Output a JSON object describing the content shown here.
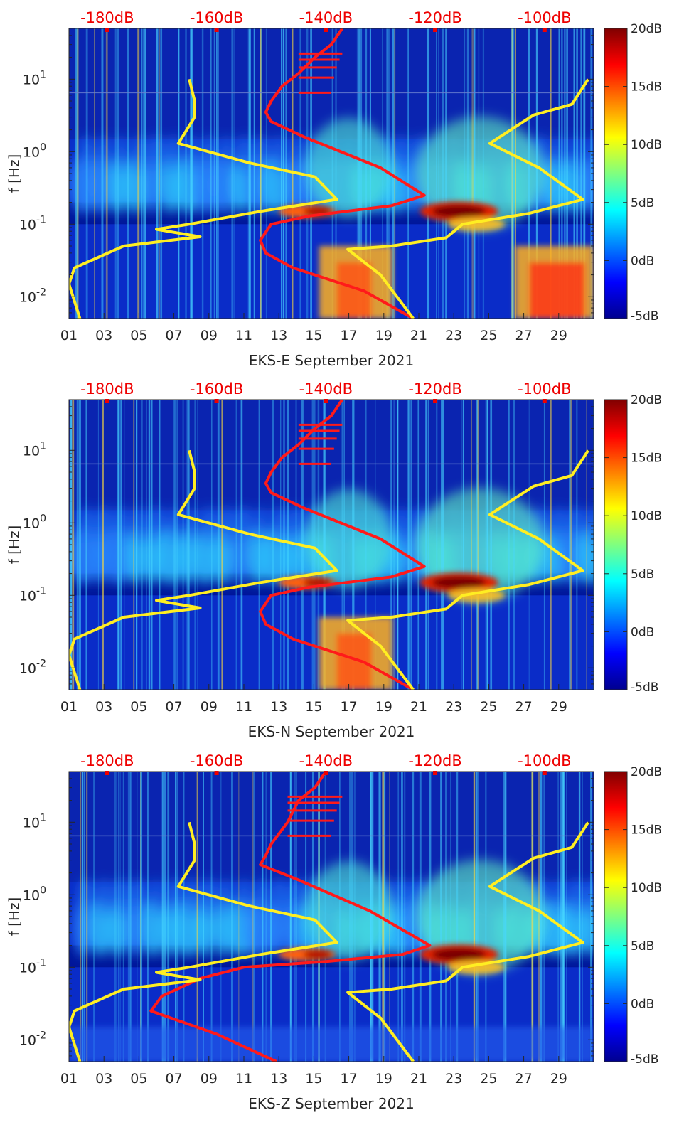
{
  "chart_data": [
    {
      "type": "heatmap",
      "xlabel": "EKS-E September 2021",
      "ylabel": "f [Hz]",
      "x_tick_labels": [
        "01",
        "03",
        "05",
        "07",
        "09",
        "11",
        "13",
        "15",
        "17",
        "19",
        "21",
        "23",
        "25",
        "27",
        "29"
      ],
      "x_range_days": [
        1,
        31
      ],
      "y_scale": "log",
      "y_range_hz": [
        0.005,
        50
      ],
      "y_tick_labels": [
        "10^-2",
        "10^-1",
        "10^0",
        "10^1"
      ],
      "top_axis_labels": [
        "-180dB",
        "-160dB",
        "-140dB",
        "-120dB",
        "-100dB"
      ],
      "top_axis_db_range": [
        -187,
        -91
      ],
      "colorbar": {
        "labels": [
          "-5dB",
          "0dB",
          "5dB",
          "10dB",
          "15dB",
          "20dB"
        ],
        "range_db": [
          -5,
          20
        ],
        "colormap": "jet"
      },
      "series": [
        {
          "color": "#ff1a1a",
          "db_vs_freq": [
            [
              -137,
              50
            ],
            [
              -139,
              30
            ],
            [
              -142,
              20
            ],
            [
              -145,
              12
            ],
            [
              -148,
              8
            ],
            [
              -150,
              5
            ],
            [
              -151,
              3.5
            ],
            [
              -150,
              2.6
            ],
            [
              -144,
              1.6
            ],
            [
              -130,
              0.6
            ],
            [
              -122,
              0.25
            ],
            [
              -128,
              0.18
            ],
            [
              -143,
              0.13
            ],
            [
              -150,
              0.1
            ],
            [
              -152,
              0.06
            ],
            [
              -151,
              0.04
            ],
            [
              -146,
              0.025
            ],
            [
              -133,
              0.012
            ],
            [
              -124,
              0.005
            ]
          ]
        },
        {
          "color": "#ffee22",
          "db_vs_freq": [
            [
              -165,
              10
            ],
            [
              -164,
              5
            ],
            [
              -164,
              3
            ],
            [
              -167,
              1.3
            ],
            [
              -154,
              0.7
            ],
            [
              -142,
              0.45
            ],
            [
              -138,
              0.22
            ],
            [
              -152,
              0.15
            ],
            [
              -165,
              0.1
            ],
            [
              -171,
              0.085
            ],
            [
              -163,
              0.067
            ],
            [
              -177,
              0.05
            ],
            [
              -186,
              0.025
            ],
            [
              -187,
              0.015
            ],
            [
              -185,
              0.005
            ]
          ]
        },
        {
          "color": "#ffee22",
          "db_vs_freq": [
            [
              -92,
              10
            ],
            [
              -95,
              4.5
            ],
            [
              -102,
              3.2
            ],
            [
              -110,
              1.3
            ],
            [
              -101,
              0.6
            ],
            [
              -93,
              0.22
            ],
            [
              -103,
              0.14
            ],
            [
              -115,
              0.1
            ],
            [
              -118,
              0.065
            ],
            [
              -128,
              0.05
            ],
            [
              -136,
              0.045
            ],
            [
              -130,
              0.02
            ],
            [
              -124,
              0.005
            ]
          ]
        }
      ]
    },
    {
      "type": "heatmap",
      "xlabel": "EKS-N September 2021",
      "ylabel": "f [Hz]",
      "x_tick_labels": [
        "01",
        "03",
        "05",
        "07",
        "09",
        "11",
        "13",
        "15",
        "17",
        "19",
        "21",
        "23",
        "25",
        "27",
        "29"
      ],
      "x_range_days": [
        1,
        31
      ],
      "y_scale": "log",
      "y_range_hz": [
        0.005,
        50
      ],
      "y_tick_labels": [
        "10^-2",
        "10^-1",
        "10^0",
        "10^1"
      ],
      "top_axis_labels": [
        "-180dB",
        "-160dB",
        "-140dB",
        "-120dB",
        "-100dB"
      ],
      "top_axis_db_range": [
        -187,
        -91
      ],
      "colorbar": {
        "labels": [
          "-5dB",
          "0dB",
          "5dB",
          "10dB",
          "15dB",
          "20dB"
        ],
        "range_db": [
          -5,
          20
        ],
        "colormap": "jet"
      },
      "series": [
        {
          "color": "#ff1a1a",
          "db_vs_freq": [
            [
              -137,
              50
            ],
            [
              -139,
              30
            ],
            [
              -142,
              20
            ],
            [
              -145,
              12
            ],
            [
              -148,
              8
            ],
            [
              -150,
              5
            ],
            [
              -151,
              3.5
            ],
            [
              -150,
              2.6
            ],
            [
              -144,
              1.6
            ],
            [
              -130,
              0.6
            ],
            [
              -122,
              0.25
            ],
            [
              -128,
              0.18
            ],
            [
              -143,
              0.13
            ],
            [
              -150,
              0.1
            ],
            [
              -152,
              0.06
            ],
            [
              -151,
              0.04
            ],
            [
              -146,
              0.025
            ],
            [
              -133,
              0.012
            ],
            [
              -124,
              0.005
            ]
          ]
        },
        {
          "color": "#ffee22",
          "db_vs_freq": [
            [
              -165,
              10
            ],
            [
              -164,
              5
            ],
            [
              -164,
              3
            ],
            [
              -167,
              1.3
            ],
            [
              -154,
              0.7
            ],
            [
              -142,
              0.45
            ],
            [
              -138,
              0.22
            ],
            [
              -152,
              0.15
            ],
            [
              -165,
              0.1
            ],
            [
              -171,
              0.085
            ],
            [
              -163,
              0.067
            ],
            [
              -177,
              0.05
            ],
            [
              -186,
              0.025
            ],
            [
              -187,
              0.015
            ],
            [
              -185,
              0.005
            ]
          ]
        },
        {
          "color": "#ffee22",
          "db_vs_freq": [
            [
              -92,
              10
            ],
            [
              -95,
              4.5
            ],
            [
              -102,
              3.2
            ],
            [
              -110,
              1.3
            ],
            [
              -101,
              0.6
            ],
            [
              -93,
              0.22
            ],
            [
              -103,
              0.14
            ],
            [
              -115,
              0.1
            ],
            [
              -118,
              0.065
            ],
            [
              -128,
              0.05
            ],
            [
              -136,
              0.045
            ],
            [
              -130,
              0.02
            ],
            [
              -124,
              0.005
            ]
          ]
        }
      ]
    },
    {
      "type": "heatmap",
      "xlabel": "EKS-Z September 2021",
      "ylabel": "f [Hz]",
      "x_tick_labels": [
        "01",
        "03",
        "05",
        "07",
        "09",
        "11",
        "13",
        "15",
        "17",
        "19",
        "21",
        "23",
        "25",
        "27",
        "29"
      ],
      "x_range_days": [
        1,
        31
      ],
      "y_scale": "log",
      "y_range_hz": [
        0.005,
        50
      ],
      "y_tick_labels": [
        "10^-2",
        "10^-1",
        "10^0",
        "10^1"
      ],
      "top_axis_labels": [
        "-180dB",
        "-160dB",
        "-140dB",
        "-120dB",
        "-100dB"
      ],
      "top_axis_db_range": [
        -187,
        -91
      ],
      "colorbar": {
        "labels": [
          "-5dB",
          "0dB",
          "5dB",
          "10dB",
          "15dB",
          "20dB"
        ],
        "range_db": [
          -5,
          20
        ],
        "colormap": "jet"
      },
      "series": [
        {
          "color": "#ff1a1a",
          "db_vs_freq": [
            [
              -140,
              50
            ],
            [
              -142,
              30
            ],
            [
              -145,
              20
            ],
            [
              -147,
              10
            ],
            [
              -150,
              5
            ],
            [
              -151,
              3.5
            ],
            [
              -152,
              2.6
            ],
            [
              -145,
              1.6
            ],
            [
              -132,
              0.6
            ],
            [
              -121,
              0.2
            ],
            [
              -126,
              0.15
            ],
            [
              -140,
              0.12
            ],
            [
              -155,
              0.1
            ],
            [
              -163,
              0.07
            ],
            [
              -170,
              0.04
            ],
            [
              -172,
              0.025
            ],
            [
              -160,
              0.012
            ],
            [
              -149,
              0.005
            ]
          ]
        },
        {
          "color": "#ffee22",
          "db_vs_freq": [
            [
              -165,
              10
            ],
            [
              -164,
              5
            ],
            [
              -164,
              3
            ],
            [
              -167,
              1.3
            ],
            [
              -154,
              0.7
            ],
            [
              -142,
              0.45
            ],
            [
              -138,
              0.22
            ],
            [
              -152,
              0.15
            ],
            [
              -165,
              0.1
            ],
            [
              -171,
              0.085
            ],
            [
              -163,
              0.067
            ],
            [
              -177,
              0.05
            ],
            [
              -186,
              0.025
            ],
            [
              -187,
              0.015
            ],
            [
              -185,
              0.005
            ]
          ]
        },
        {
          "color": "#ffee22",
          "db_vs_freq": [
            [
              -92,
              10
            ],
            [
              -95,
              4.5
            ],
            [
              -102,
              3.2
            ],
            [
              -110,
              1.3
            ],
            [
              -101,
              0.6
            ],
            [
              -93,
              0.22
            ],
            [
              -103,
              0.14
            ],
            [
              -115,
              0.1
            ],
            [
              -118,
              0.065
            ],
            [
              -128,
              0.05
            ],
            [
              -136,
              0.045
            ],
            [
              -130,
              0.02
            ],
            [
              -124,
              0.005
            ]
          ]
        }
      ]
    }
  ]
}
